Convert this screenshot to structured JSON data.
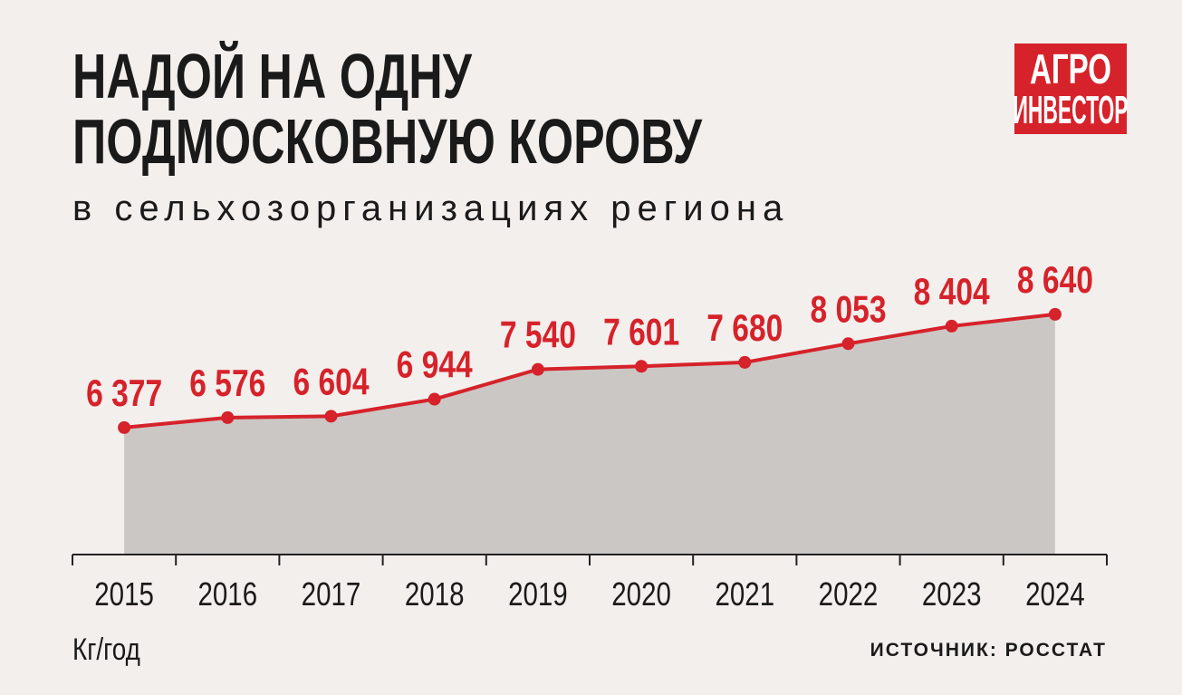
{
  "chart_data": {
    "type": "area-line",
    "title": [
      "НАДОЙ НА ОДНУ",
      "ПОДМОСКОВНУЮ КОРОВУ"
    ],
    "subtitle": "в сельхозорганизациях региона",
    "logo": [
      "АГРО",
      "ИНВЕСТОР"
    ],
    "categories": [
      "2015",
      "2016",
      "2017",
      "2018",
      "2019",
      "2020",
      "2021",
      "2022",
      "2023",
      "2024"
    ],
    "values": [
      6377,
      6576,
      6604,
      6944,
      7540,
      7601,
      7680,
      8053,
      8404,
      8640
    ],
    "value_labels": [
      "6 377",
      "6 576",
      "6 604",
      "6 944",
      "7 540",
      "7 601",
      "7 680",
      "8 053",
      "8 404",
      "8 640"
    ],
    "color": "#d6222a",
    "area_color": "#cbc7c5",
    "ylim": [
      3840,
      9000
    ],
    "y_label": "Кг/год",
    "source": "ИСТОЧНИК: РОССТАТ"
  }
}
